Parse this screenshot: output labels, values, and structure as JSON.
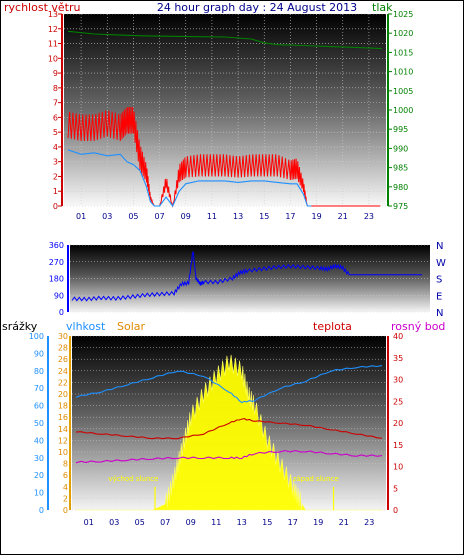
{
  "colors": {
    "wind_speed": "#ff0000",
    "wind_gust": "#1e90ff",
    "pressure": "#008000",
    "direction": "#0000ff",
    "humidity": "#1e90ff",
    "solar": "#ffff00",
    "temperature": "#cc0000",
    "dew_point": "#cc00cc",
    "rain": "#0000ff"
  },
  "chart_data": [
    {
      "type": "line",
      "title": "24 hour graph day : 24 August 2013",
      "ylabel_left": "rychlost větru",
      "ylabel_right": "tlak",
      "x_ticks": [
        "01",
        "03",
        "05",
        "07",
        "09",
        "11",
        "13",
        "15",
        "17",
        "19",
        "21",
        "23"
      ],
      "y_left_ticks": [
        "0",
        "1",
        "2",
        "3",
        "4",
        "5",
        "6",
        "7",
        "8",
        "9",
        "10",
        "11",
        "12",
        "13"
      ],
      "y_right_ticks": [
        "975",
        "980",
        "985",
        "990",
        "995",
        "1000",
        "1005",
        "1010",
        "1015",
        "1020",
        "1025"
      ],
      "ylim_left": [
        0,
        13
      ],
      "ylim_right": [
        975,
        1025
      ],
      "grid": true,
      "series": [
        {
          "axis": "left",
          "x": [
            0,
            1,
            2,
            3,
            4,
            4.5,
            5,
            5.5,
            6,
            6.3,
            6.6,
            7,
            7.5,
            8,
            8.5,
            9,
            10,
            11,
            12,
            13,
            14,
            15,
            16,
            17,
            17.5,
            18,
            18.3,
            18.6,
            19,
            20,
            21,
            22,
            23,
            24
          ],
          "values": [
            5.2,
            5,
            5,
            5.3,
            5,
            5.5,
            5.5,
            3,
            2,
            0.5,
            0,
            0,
            1.5,
            0,
            2,
            2.4,
            2.5,
            2.5,
            2.5,
            2.4,
            2.5,
            2.5,
            2.5,
            2.2,
            2.3,
            1.2,
            0,
            0,
            0,
            0,
            0,
            0,
            0,
            0
          ]
        },
        {
          "axis": "left",
          "x": [
            0,
            1,
            2,
            3,
            4,
            4.5,
            5,
            5.5,
            6,
            6.3,
            6.6,
            7,
            7.5,
            8,
            8.5,
            9,
            10,
            11,
            12,
            13,
            14,
            15,
            16,
            17,
            17.5,
            18,
            18.3,
            18.6
          ],
          "values": [
            3.8,
            3.5,
            3.6,
            3.4,
            3.5,
            3,
            2.8,
            2.4,
            1.3,
            0.3,
            0,
            0,
            0.6,
            0,
            1,
            1.5,
            1.7,
            1.7,
            1.7,
            1.6,
            1.7,
            1.7,
            1.6,
            1.5,
            1.5,
            0.8,
            0,
            0
          ]
        },
        {
          "axis": "right",
          "x": [
            0,
            2,
            4,
            6,
            8,
            10,
            12,
            14,
            15,
            16,
            18,
            20,
            22,
            24
          ],
          "values": [
            1020.5,
            1019.8,
            1019.5,
            1019.3,
            1019.2,
            1019.1,
            1019,
            1018.5,
            1017.5,
            1017,
            1016.8,
            1016.5,
            1016.3,
            1016
          ]
        }
      ]
    },
    {
      "type": "line",
      "ylabel_right": [
        "N",
        "W",
        "S",
        "E",
        "N"
      ],
      "y_left_ticks": [
        "0",
        "90",
        "180",
        "270",
        "360"
      ],
      "ylim": [
        0,
        360
      ],
      "series": [
        {
          "x": [
            0,
            1,
            2,
            3,
            4,
            5,
            6,
            7,
            7.5,
            8,
            8.3,
            8.5,
            8.8,
            9,
            10,
            11,
            11.5,
            12,
            13,
            14,
            15,
            16,
            17,
            17.5,
            18,
            18.5,
            19,
            20,
            21,
            22,
            23,
            24
          ],
          "values": [
            70,
            68,
            75,
            72,
            80,
            90,
            95,
            100,
            150,
            155,
            330,
            180,
            150,
            160,
            160,
            180,
            210,
            220,
            230,
            240,
            245,
            240,
            235,
            230,
            245,
            240,
            200,
            200,
            200,
            200,
            200,
            200
          ]
        }
      ]
    },
    {
      "type": "line",
      "ylabel_left": [
        "srážky",
        "vlhkost"
      ],
      "ylabel_mid": "Solar",
      "ylabel_right": [
        "teplota",
        "rosný bod"
      ],
      "annotations": [
        "východ slunce",
        "západ slunce"
      ],
      "y_far_left_ticks": [
        "0",
        "10",
        "20",
        "30",
        "40",
        "50",
        "60",
        "70",
        "80",
        "90",
        "100"
      ],
      "y_left_ticks": [
        "0",
        "2",
        "4",
        "6",
        "8",
        "10",
        "12",
        "14",
        "16",
        "18",
        "20",
        "22",
        "24",
        "26",
        "28",
        "30"
      ],
      "y_right_ticks": [
        "0",
        "5",
        "10",
        "15",
        "20",
        "25",
        "30",
        "35",
        "40"
      ],
      "ylim_humidity": [
        0,
        100
      ],
      "ylim_temp": [
        0,
        40
      ],
      "series": [
        {
          "name": "vlhkost",
          "x": [
            0,
            2,
            4,
            6,
            8,
            10,
            12,
            13,
            14,
            16,
            18,
            20,
            22,
            24
          ],
          "values": [
            65,
            68,
            72,
            76,
            80,
            77,
            68,
            62,
            63,
            70,
            74,
            80,
            82,
            83
          ]
        },
        {
          "name": "teplota",
          "x": [
            0,
            2,
            4,
            6,
            8,
            10,
            12,
            13,
            14,
            16,
            18,
            20,
            22,
            24
          ],
          "values": [
            18,
            17.5,
            17,
            16.5,
            16.5,
            17.5,
            20,
            21,
            20.5,
            20,
            19.5,
            18.5,
            17.5,
            16.5
          ]
        },
        {
          "name": "rosný bod",
          "x": [
            0,
            2,
            4,
            6,
            8,
            10,
            12,
            13,
            14,
            16,
            18,
            20,
            22,
            24
          ],
          "values": [
            11,
            11.2,
            11.5,
            11.8,
            12,
            12,
            12,
            12,
            13,
            13.5,
            13.5,
            13,
            12.5,
            12.5
          ]
        },
        {
          "name": "Solar",
          "x": [
            0,
            6,
            7,
            7.5,
            8,
            8.5,
            9,
            10,
            11,
            12,
            13,
            13.5,
            14,
            15,
            16,
            17,
            17.5,
            18,
            19,
            24
          ],
          "values": [
            0,
            0,
            1,
            4,
            8,
            12,
            16,
            20,
            23,
            25.5,
            24,
            20,
            18,
            12,
            8,
            4,
            2,
            0,
            0,
            0
          ]
        }
      ]
    }
  ]
}
